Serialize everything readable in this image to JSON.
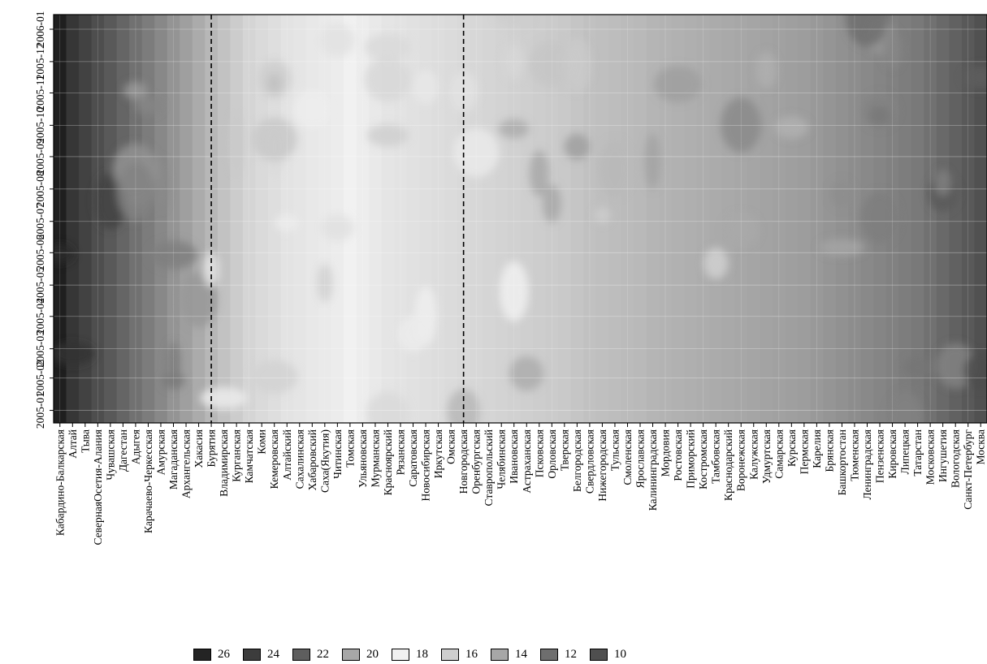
{
  "chart_data": {
    "type": "heatmap",
    "title": "",
    "xlabel": "",
    "ylabel": "",
    "y_ticks": [
      "2005-01",
      "2005-02",
      "2005-03",
      "2005-04",
      "2005-05",
      "2005-06",
      "2005-07",
      "2005-08",
      "2005-09",
      "2005-10",
      "2005-11",
      "2005-12",
      "2006-01"
    ],
    "y_range": [
      "2004-12-20",
      "2006-01-15"
    ],
    "regions": [
      "Кабардино-Балкарская",
      "Алтай",
      "Тыва",
      "СевернаяОсетия-Алания",
      "Чувашская",
      "Дагестан",
      "Адыгея",
      "Карачаево-Черкесская",
      "Амурская",
      "Магаданская",
      "Архангельская",
      "Хакасия",
      "Бурятия",
      "Владимирская",
      "Курганская",
      "Камчатская",
      "Коми",
      "Кемеровская",
      "Алтайский",
      "Сахалинская",
      "Хабаровский",
      "Саха(Якутия)",
      "Читинская",
      "Томская",
      "Ульяновская",
      "Мурманская",
      "Красноярский",
      "Рязанская",
      "Саратовская",
      "Новосибирская",
      "Иркутская",
      "Омская",
      "Новгородская",
      "Оренбургская",
      "Ставропольский",
      "Челябинская",
      "Ивановская",
      "Астраханская",
      "Псковская",
      "Орловская",
      "Тверская",
      "Белгородская",
      "Свердловская",
      "Нижегородская",
      "Тульская",
      "Смоленская",
      "Ярославская",
      "Калининградская",
      "Мордовия",
      "Ростовская",
      "Приморский",
      "Костромская",
      "Тамбовская",
      "Краснодарский",
      "Воронежская",
      "Калужская",
      "Удмуртская",
      "Самарская",
      "Курская",
      "Пермская",
      "Карелия",
      "Брянская",
      "Башкортостан",
      "Тюменская",
      "Ленинградская",
      "Пензенская",
      "Кировская",
      "Липецкая",
      "Татарстан",
      "Московская",
      "Ингушетия",
      "Вологодская",
      "Санкт-Петербург",
      "Москва"
    ],
    "legend": [
      {
        "label": "26",
        "color": "#242424"
      },
      {
        "label": "24",
        "color": "#3c3c3c"
      },
      {
        "label": "22",
        "color": "#5e5e5e"
      },
      {
        "label": "20",
        "color": "#a7a7a7"
      },
      {
        "label": "18",
        "color": "#f1f1f1"
      },
      {
        "label": "16",
        "color": "#cecece"
      },
      {
        "label": "14",
        "color": "#a7a7a7"
      },
      {
        "label": "12",
        "color": "#6e6e6e"
      },
      {
        "label": "10",
        "color": "#4f4f4f"
      }
    ],
    "column_profile": [
      {
        "region": "Кабардино-Балкарская",
        "value": 27
      },
      {
        "region": "Алтай",
        "value": 26
      },
      {
        "region": "Тыва",
        "value": 25.5
      },
      {
        "region": "СевернаяОсетия-Алания",
        "value": 25
      },
      {
        "region": "Чувашская",
        "value": 24.5
      },
      {
        "region": "Дагестан",
        "value": 24
      },
      {
        "region": "Адыгея",
        "value": 23.5
      },
      {
        "region": "Карачаево-Черкесская",
        "value": 23
      },
      {
        "region": "Амурская",
        "value": 22.5
      },
      {
        "region": "Магаданская",
        "value": 22
      },
      {
        "region": "Архангельская",
        "value": 21.5
      },
      {
        "region": "Хакасия",
        "value": 21
      },
      {
        "region": "Бурятия",
        "value": 20.5
      },
      {
        "region": "Владимирская",
        "value": 20
      },
      {
        "region": "Курганская",
        "value": 19.6
      },
      {
        "region": "Камчатская",
        "value": 19.2
      },
      {
        "region": "Коми",
        "value": 19
      },
      {
        "region": "Кемеровская",
        "value": 18.8
      },
      {
        "region": "Алтайский",
        "value": 18.6
      },
      {
        "region": "Сахалинская",
        "value": 18.5
      },
      {
        "region": "Хабаровский",
        "value": 18.4
      },
      {
        "region": "Саха(Якутия)",
        "value": 18.3
      },
      {
        "region": "Читинская",
        "value": 18.2
      },
      {
        "region": "Томская",
        "value": 18
      },
      {
        "region": "Ульяновская",
        "value": 17.8
      },
      {
        "region": "Мурманская",
        "value": 17.6
      },
      {
        "region": "Красноярский",
        "value": 17.4
      },
      {
        "region": "Рязанская",
        "value": 17.3
      },
      {
        "region": "Саратовская",
        "value": 17.2
      },
      {
        "region": "Новосибирская",
        "value": 17.1
      },
      {
        "region": "Иркутская",
        "value": 17
      },
      {
        "region": "Омская",
        "value": 16.9
      },
      {
        "region": "Новгородская",
        "value": 16.8
      },
      {
        "region": "Оренбургская",
        "value": 16.7
      },
      {
        "region": "Ставропольский",
        "value": 16.6
      },
      {
        "region": "Челябинская",
        "value": 16.5
      },
      {
        "region": "Ивановская",
        "value": 16.4
      },
      {
        "region": "Астраханская",
        "value": 16.3
      },
      {
        "region": "Псковская",
        "value": 16.2
      },
      {
        "region": "Орловская",
        "value": 16.1
      },
      {
        "region": "Тверская",
        "value": 16
      },
      {
        "region": "Белгородская",
        "value": 15.8
      },
      {
        "region": "Свердловская",
        "value": 15.6
      },
      {
        "region": "Нижегородская",
        "value": 15.5
      },
      {
        "region": "Тульская",
        "value": 15.4
      },
      {
        "region": "Смоленская",
        "value": 15.3
      },
      {
        "region": "Ярославская",
        "value": 15.2
      },
      {
        "region": "Калининградская",
        "value": 15
      },
      {
        "region": "Мордовия",
        "value": 14.9
      },
      {
        "region": "Ростовская",
        "value": 14.8
      },
      {
        "region": "Приморский",
        "value": 14.7
      },
      {
        "region": "Костромская",
        "value": 14.6
      },
      {
        "region": "Тамбовская",
        "value": 14.5
      },
      {
        "region": "Краснодарский",
        "value": 14.4
      },
      {
        "region": "Воронежская",
        "value": 14.3
      },
      {
        "region": "Калужская",
        "value": 14.2
      },
      {
        "region": "Удмуртская",
        "value": 14.1
      },
      {
        "region": "Самарская",
        "value": 14
      },
      {
        "region": "Курская",
        "value": 13.9
      },
      {
        "region": "Пермская",
        "value": 13.8
      },
      {
        "region": "Карелия",
        "value": 13.6
      },
      {
        "region": "Брянская",
        "value": 13.4
      },
      {
        "region": "Башкортостан",
        "value": 13.2
      },
      {
        "region": "Тюменская",
        "value": 13
      },
      {
        "region": "Ленинградская",
        "value": 12.8
      },
      {
        "region": "Пензенская",
        "value": 12.6
      },
      {
        "region": "Кировская",
        "value": 12.4
      },
      {
        "region": "Липецкая",
        "value": 12.2
      },
      {
        "region": "Татарстан",
        "value": 12
      },
      {
        "region": "Московская",
        "value": 11.6
      },
      {
        "region": "Ингушетия",
        "value": 11.2
      },
      {
        "region": "Вологодская",
        "value": 10.8
      },
      {
        "region": "Санкт-Петербург",
        "value": 10.4
      },
      {
        "region": "Москва",
        "value": 10
      }
    ],
    "reference_lines": [
      "Бурятия",
      "Новгородская"
    ],
    "grid": true,
    "legend_position": "bottom"
  }
}
